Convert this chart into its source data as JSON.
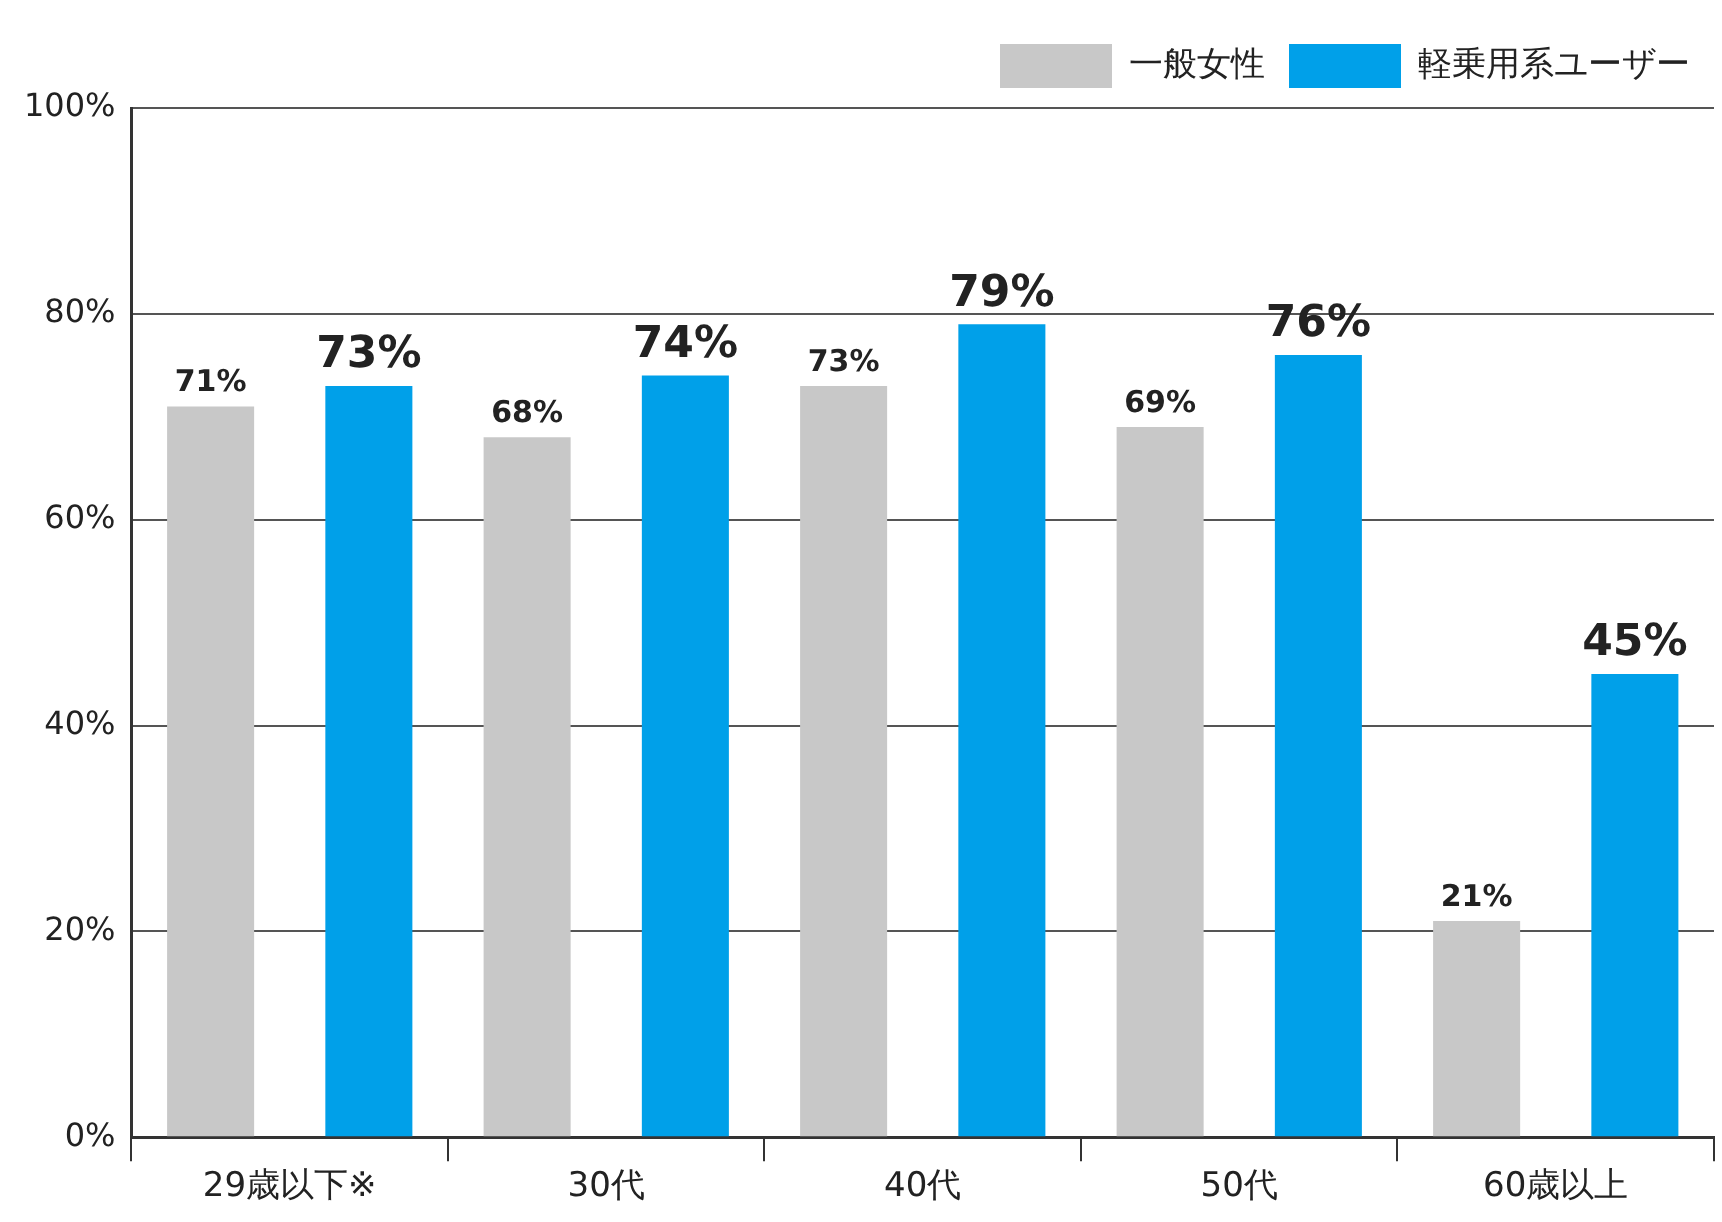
{
  "chart_data": {
    "type": "bar",
    "categories": [
      "29歳以下※",
      "30代",
      "40代",
      "50代",
      "60歳以上"
    ],
    "series": [
      {
        "name": "一般女性",
        "color": "#c8c8c8",
        "values": [
          71,
          68,
          73,
          69,
          21
        ],
        "value_labels": [
          "71%",
          "68%",
          "73%",
          "69%",
          "21%"
        ]
      },
      {
        "name": "軽乗用系ユーザー",
        "color": "#00a0e9",
        "values": [
          73,
          74,
          79,
          76,
          45
        ],
        "value_labels": [
          "73%",
          "74%",
          "79%",
          "76%",
          "45%"
        ]
      }
    ],
    "ylim": [
      0,
      100
    ],
    "yticks": [
      {
        "value": 0,
        "label": "0%"
      },
      {
        "value": 20,
        "label": "20%"
      },
      {
        "value": 40,
        "label": "40%"
      },
      {
        "value": 60,
        "label": "60%"
      },
      {
        "value": 80,
        "label": "80%"
      },
      {
        "value": 100,
        "label": "100%"
      }
    ],
    "grid": "y",
    "legend": "top right"
  }
}
